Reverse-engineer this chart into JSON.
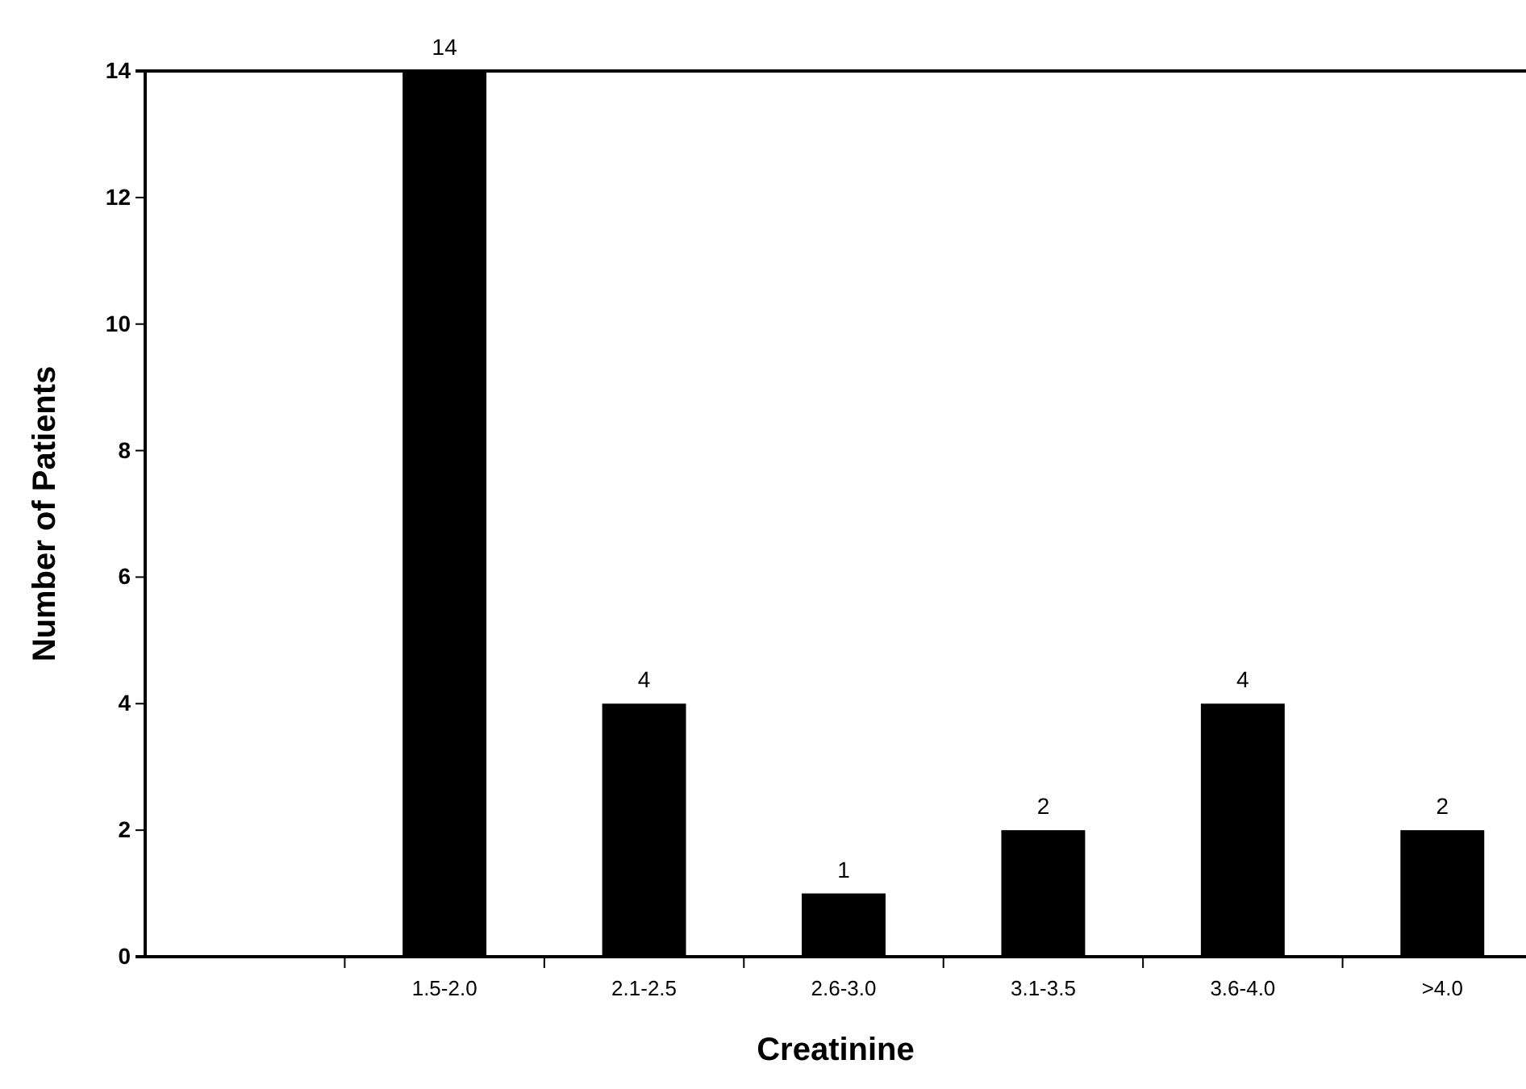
{
  "chart_data": {
    "type": "bar",
    "xlabel": "Creatinine",
    "ylabel": "Number of Patients",
    "categories": [
      null,
      "1.5-2.0",
      "2.1-2.5",
      "2.6-3.0",
      "3.1-3.5",
      "3.6-4.0",
      ">4.0"
    ],
    "values": [
      null,
      14,
      4,
      1,
      2,
      4,
      2
    ],
    "color": "#000000",
    "ylim": [
      0,
      14
    ],
    "yticks": [
      0,
      2,
      4,
      6,
      8,
      10,
      12,
      14
    ],
    "grid": false,
    "data_labels": true
  }
}
